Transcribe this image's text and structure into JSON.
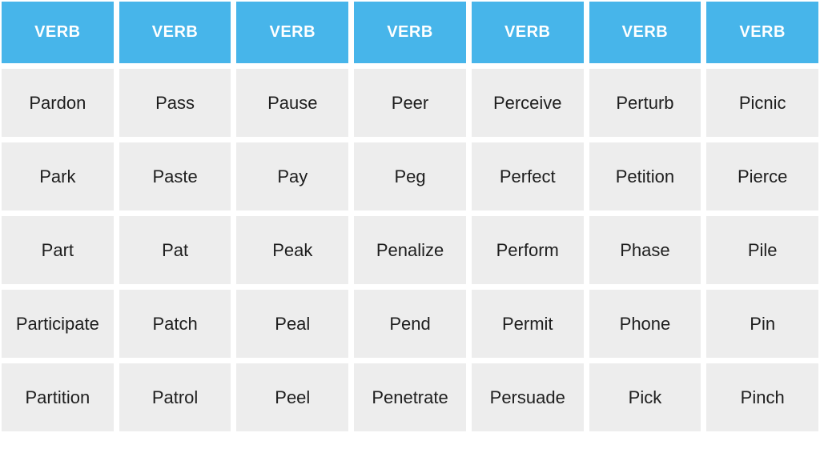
{
  "table": {
    "header_label": "VERB",
    "num_columns": 7,
    "columns": [
      [
        "Pardon",
        "Park",
        "Part",
        "Participate",
        "Partition"
      ],
      [
        "Pass",
        "Paste",
        "Pat",
        "Patch",
        "Patrol"
      ],
      [
        "Pause",
        "Pay",
        "Peak",
        "Peal",
        "Peel"
      ],
      [
        "Peer",
        "Peg",
        "Penalize",
        "Pend",
        "Penetrate"
      ],
      [
        "Perceive",
        "Perfect",
        "Perform",
        "Permit",
        "Persuade"
      ],
      [
        "Perturb",
        "Petition",
        "Phase",
        "Phone",
        "Pick"
      ],
      [
        "Picnic",
        "Pierce",
        "Pile",
        "Pin",
        "Pinch"
      ]
    ],
    "colors": {
      "header_bg": "#47B5EA",
      "header_text": "#FFFFFF",
      "cell_bg": "#EDEDED",
      "cell_text": "#1E1E1E",
      "page_bg": "#FFFFFF"
    }
  }
}
